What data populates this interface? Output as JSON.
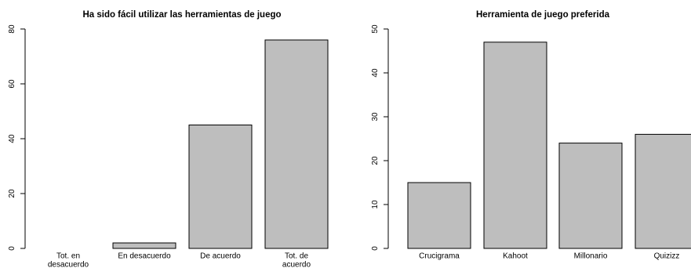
{
  "chart_data": [
    {
      "type": "bar",
      "title": "Ha sido fácil utilizar las herramientas de juego",
      "xlabel": "",
      "ylabel": "",
      "categories": [
        [
          "Tot. en",
          "desacuerdo"
        ],
        [
          "En desacuerdo"
        ],
        [
          "De acuerdo"
        ],
        [
          "Tot. de",
          "acuerdo"
        ]
      ],
      "values": [
        0,
        2,
        45,
        76
      ],
      "ylim": [
        0,
        80
      ],
      "yticks": [
        0,
        20,
        40,
        60,
        80
      ],
      "bar_color": "#bebebe",
      "grid": false
    },
    {
      "type": "bar",
      "title": "Herramienta de juego preferida",
      "xlabel": "",
      "ylabel": "",
      "categories": [
        [
          "Crucigrama"
        ],
        [
          "Kahoot"
        ],
        [
          "Millonario"
        ],
        [
          "Quizizz"
        ]
      ],
      "values": [
        15,
        47,
        24,
        26
      ],
      "ylim": [
        0,
        50
      ],
      "yticks": [
        0,
        10,
        20,
        30,
        40,
        50
      ],
      "bar_color": "#bebebe",
      "grid": false
    }
  ]
}
